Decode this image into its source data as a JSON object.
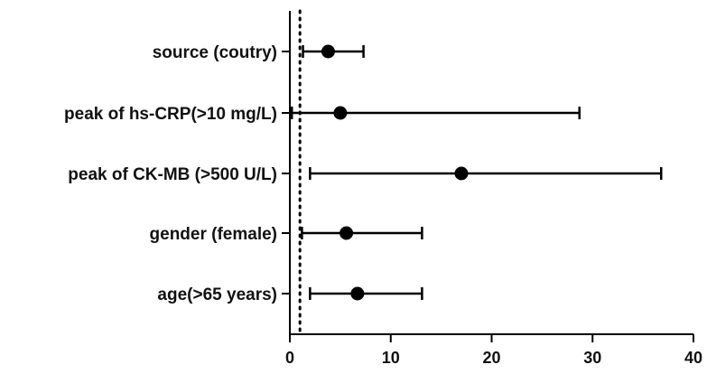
{
  "chart_data": {
    "type": "scatter",
    "subtype": "forest-plot",
    "title": "",
    "xlabel": "",
    "ylabel": "",
    "xlim": [
      0,
      40
    ],
    "xticks": [
      0,
      10,
      20,
      30,
      40
    ],
    "reference_line": 1,
    "grid": false,
    "legend": "none",
    "marker_color": "#000000",
    "categories": [
      "source (coutry)",
      "peak  of hs-CRP(>10 mg/L)",
      "peak of  CK-MB (>500 U/L)",
      "gender (female)",
      "age(>65 years)"
    ],
    "points": [
      {
        "label": "source (coutry)",
        "estimate": 3.8,
        "lower": 1.3,
        "upper": 7.3
      },
      {
        "label": "peak  of hs-CRP(>10 mg/L)",
        "estimate": 5.0,
        "lower": 0.2,
        "upper": 28.7
      },
      {
        "label": "peak of  CK-MB (>500 U/L)",
        "estimate": 17.0,
        "lower": 2.0,
        "upper": 36.8
      },
      {
        "label": "gender (female)",
        "estimate": 5.6,
        "lower": 1.2,
        "upper": 13.1
      },
      {
        "label": "age(>65 years)",
        "estimate": 6.7,
        "lower": 2.0,
        "upper": 13.1
      }
    ]
  }
}
